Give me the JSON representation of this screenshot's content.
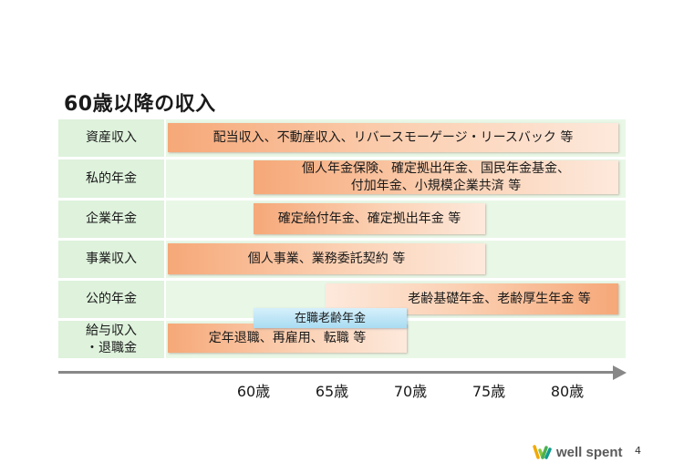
{
  "title": "60歳以降の収入",
  "rows": [
    {
      "label": "資産収入",
      "bars": [
        {
          "text": "配当収入、不動産収入、リバースモーゲージ・リースバック 等"
        }
      ]
    },
    {
      "label": "私的年金",
      "bars": [
        {
          "text": "個人年金保険、確定拠出年金、国民年金基金、\n付加年金、小規模企業共済 等"
        }
      ]
    },
    {
      "label": "企業年金",
      "bars": [
        {
          "text": "確定給付年金、確定拠出年金 等"
        }
      ]
    },
    {
      "label": "事業収入",
      "bars": [
        {
          "text": "個人事業、業務委託契約 等"
        }
      ]
    },
    {
      "label": "公的年金",
      "bars": [
        {
          "text": "老齢基礎年金、老齢厚生年金 等"
        }
      ]
    },
    {
      "label": "給与収入\n・退職金",
      "bars": [
        {
          "text": "在職老齢年金"
        },
        {
          "text": "定年退職、再雇用、転職 等"
        }
      ]
    }
  ],
  "axis": {
    "ticks": [
      "60歳",
      "65歳",
      "70歳",
      "75歳",
      "80歳"
    ]
  },
  "footer": {
    "brand": "well spent",
    "page": "4"
  },
  "colors": {
    "label_bg": "#def2dc",
    "row_bg": "#e9f7e7",
    "bar_orange": "#f6a878",
    "bar_blue": "#a9dcf2",
    "axis": "#888888"
  }
}
